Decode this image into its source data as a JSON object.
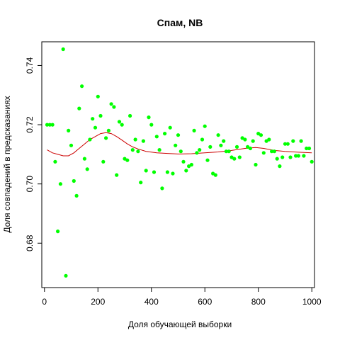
{
  "chart_data": {
    "type": "scatter",
    "title": "Спам, NB",
    "xlabel": "Доля обучающей выборки",
    "ylabel": "Доля совпадений в предсказаниях",
    "xlim": [
      -10,
      1010
    ],
    "ylim": [
      0.665,
      0.748
    ],
    "xticks": [
      "0",
      "200",
      "400",
      "600",
      "800",
      "1000"
    ],
    "yticks": [
      "0.68",
      "0.70",
      "0.72",
      "0.74"
    ],
    "grid": false,
    "legend": false,
    "point_color": "#00ff00",
    "smooth_color": "#cc0000",
    "points": [
      [
        10,
        0.72
      ],
      [
        20,
        0.72
      ],
      [
        30,
        0.72
      ],
      [
        40,
        0.7075
      ],
      [
        50,
        0.684
      ],
      [
        60,
        0.7
      ],
      [
        70,
        0.7455
      ],
      [
        80,
        0.669
      ],
      [
        90,
        0.718
      ],
      [
        100,
        0.713
      ],
      [
        110,
        0.701
      ],
      [
        120,
        0.696
      ],
      [
        130,
        0.7255
      ],
      [
        140,
        0.733
      ],
      [
        150,
        0.7085
      ],
      [
        160,
        0.705
      ],
      [
        170,
        0.715
      ],
      [
        180,
        0.722
      ],
      [
        190,
        0.719
      ],
      [
        200,
        0.7295
      ],
      [
        210,
        0.723
      ],
      [
        220,
        0.7075
      ],
      [
        230,
        0.7155
      ],
      [
        240,
        0.718
      ],
      [
        250,
        0.727
      ],
      [
        260,
        0.726
      ],
      [
        270,
        0.703
      ],
      [
        280,
        0.721
      ],
      [
        290,
        0.72
      ],
      [
        300,
        0.7085
      ],
      [
        310,
        0.708
      ],
      [
        320,
        0.723
      ],
      [
        330,
        0.7115
      ],
      [
        340,
        0.715
      ],
      [
        350,
        0.711
      ],
      [
        360,
        0.7005
      ],
      [
        370,
        0.7145
      ],
      [
        380,
        0.7045
      ],
      [
        390,
        0.7225
      ],
      [
        400,
        0.72
      ],
      [
        410,
        0.704
      ],
      [
        420,
        0.716
      ],
      [
        430,
        0.7115
      ],
      [
        440,
        0.6985
      ],
      [
        450,
        0.717
      ],
      [
        460,
        0.704
      ],
      [
        470,
        0.719
      ],
      [
        480,
        0.7035
      ],
      [
        490,
        0.713
      ],
      [
        500,
        0.7165
      ],
      [
        510,
        0.711
      ],
      [
        520,
        0.7075
      ],
      [
        530,
        0.7045
      ],
      [
        540,
        0.706
      ],
      [
        550,
        0.7065
      ],
      [
        560,
        0.718
      ],
      [
        570,
        0.7105
      ],
      [
        580,
        0.7115
      ],
      [
        590,
        0.715
      ],
      [
        600,
        0.7195
      ],
      [
        610,
        0.708
      ],
      [
        620,
        0.7125
      ],
      [
        630,
        0.7035
      ],
      [
        640,
        0.703
      ],
      [
        650,
        0.7165
      ],
      [
        660,
        0.713
      ],
      [
        670,
        0.7145
      ],
      [
        680,
        0.711
      ],
      [
        690,
        0.711
      ],
      [
        700,
        0.709
      ],
      [
        710,
        0.7085
      ],
      [
        720,
        0.7125
      ],
      [
        730,
        0.709
      ],
      [
        740,
        0.7155
      ],
      [
        750,
        0.715
      ],
      [
        760,
        0.7125
      ],
      [
        770,
        0.712
      ],
      [
        780,
        0.7145
      ],
      [
        790,
        0.7065
      ],
      [
        800,
        0.717
      ],
      [
        810,
        0.7165
      ],
      [
        820,
        0.7105
      ],
      [
        830,
        0.7145
      ],
      [
        840,
        0.715
      ],
      [
        850,
        0.711
      ],
      [
        860,
        0.711
      ],
      [
        870,
        0.7085
      ],
      [
        880,
        0.706
      ],
      [
        890,
        0.709
      ],
      [
        900,
        0.7135
      ],
      [
        910,
        0.7135
      ],
      [
        920,
        0.709
      ],
      [
        930,
        0.7145
      ],
      [
        940,
        0.7095
      ],
      [
        950,
        0.7095
      ],
      [
        960,
        0.7145
      ],
      [
        970,
        0.7095
      ],
      [
        980,
        0.712
      ],
      [
        990,
        0.712
      ],
      [
        1000,
        0.7075
      ]
    ],
    "smooth": [
      [
        10,
        0.7115
      ],
      [
        30,
        0.7105
      ],
      [
        50,
        0.71
      ],
      [
        70,
        0.7095
      ],
      [
        90,
        0.7095
      ],
      [
        110,
        0.7105
      ],
      [
        130,
        0.712
      ],
      [
        150,
        0.7135
      ],
      [
        170,
        0.715
      ],
      [
        190,
        0.716
      ],
      [
        210,
        0.717
      ],
      [
        230,
        0.7173
      ],
      [
        250,
        0.717
      ],
      [
        270,
        0.716
      ],
      [
        290,
        0.7148
      ],
      [
        310,
        0.7135
      ],
      [
        330,
        0.7125
      ],
      [
        350,
        0.7118
      ],
      [
        380,
        0.711
      ],
      [
        420,
        0.7105
      ],
      [
        460,
        0.7103
      ],
      [
        500,
        0.7101
      ],
      [
        550,
        0.7102
      ],
      [
        600,
        0.7105
      ],
      [
        650,
        0.7108
      ],
      [
        700,
        0.7113
      ],
      [
        750,
        0.712
      ],
      [
        790,
        0.7123
      ],
      [
        820,
        0.712
      ],
      [
        860,
        0.7113
      ],
      [
        900,
        0.711
      ],
      [
        950,
        0.7107
      ],
      [
        1000,
        0.7105
      ]
    ]
  }
}
